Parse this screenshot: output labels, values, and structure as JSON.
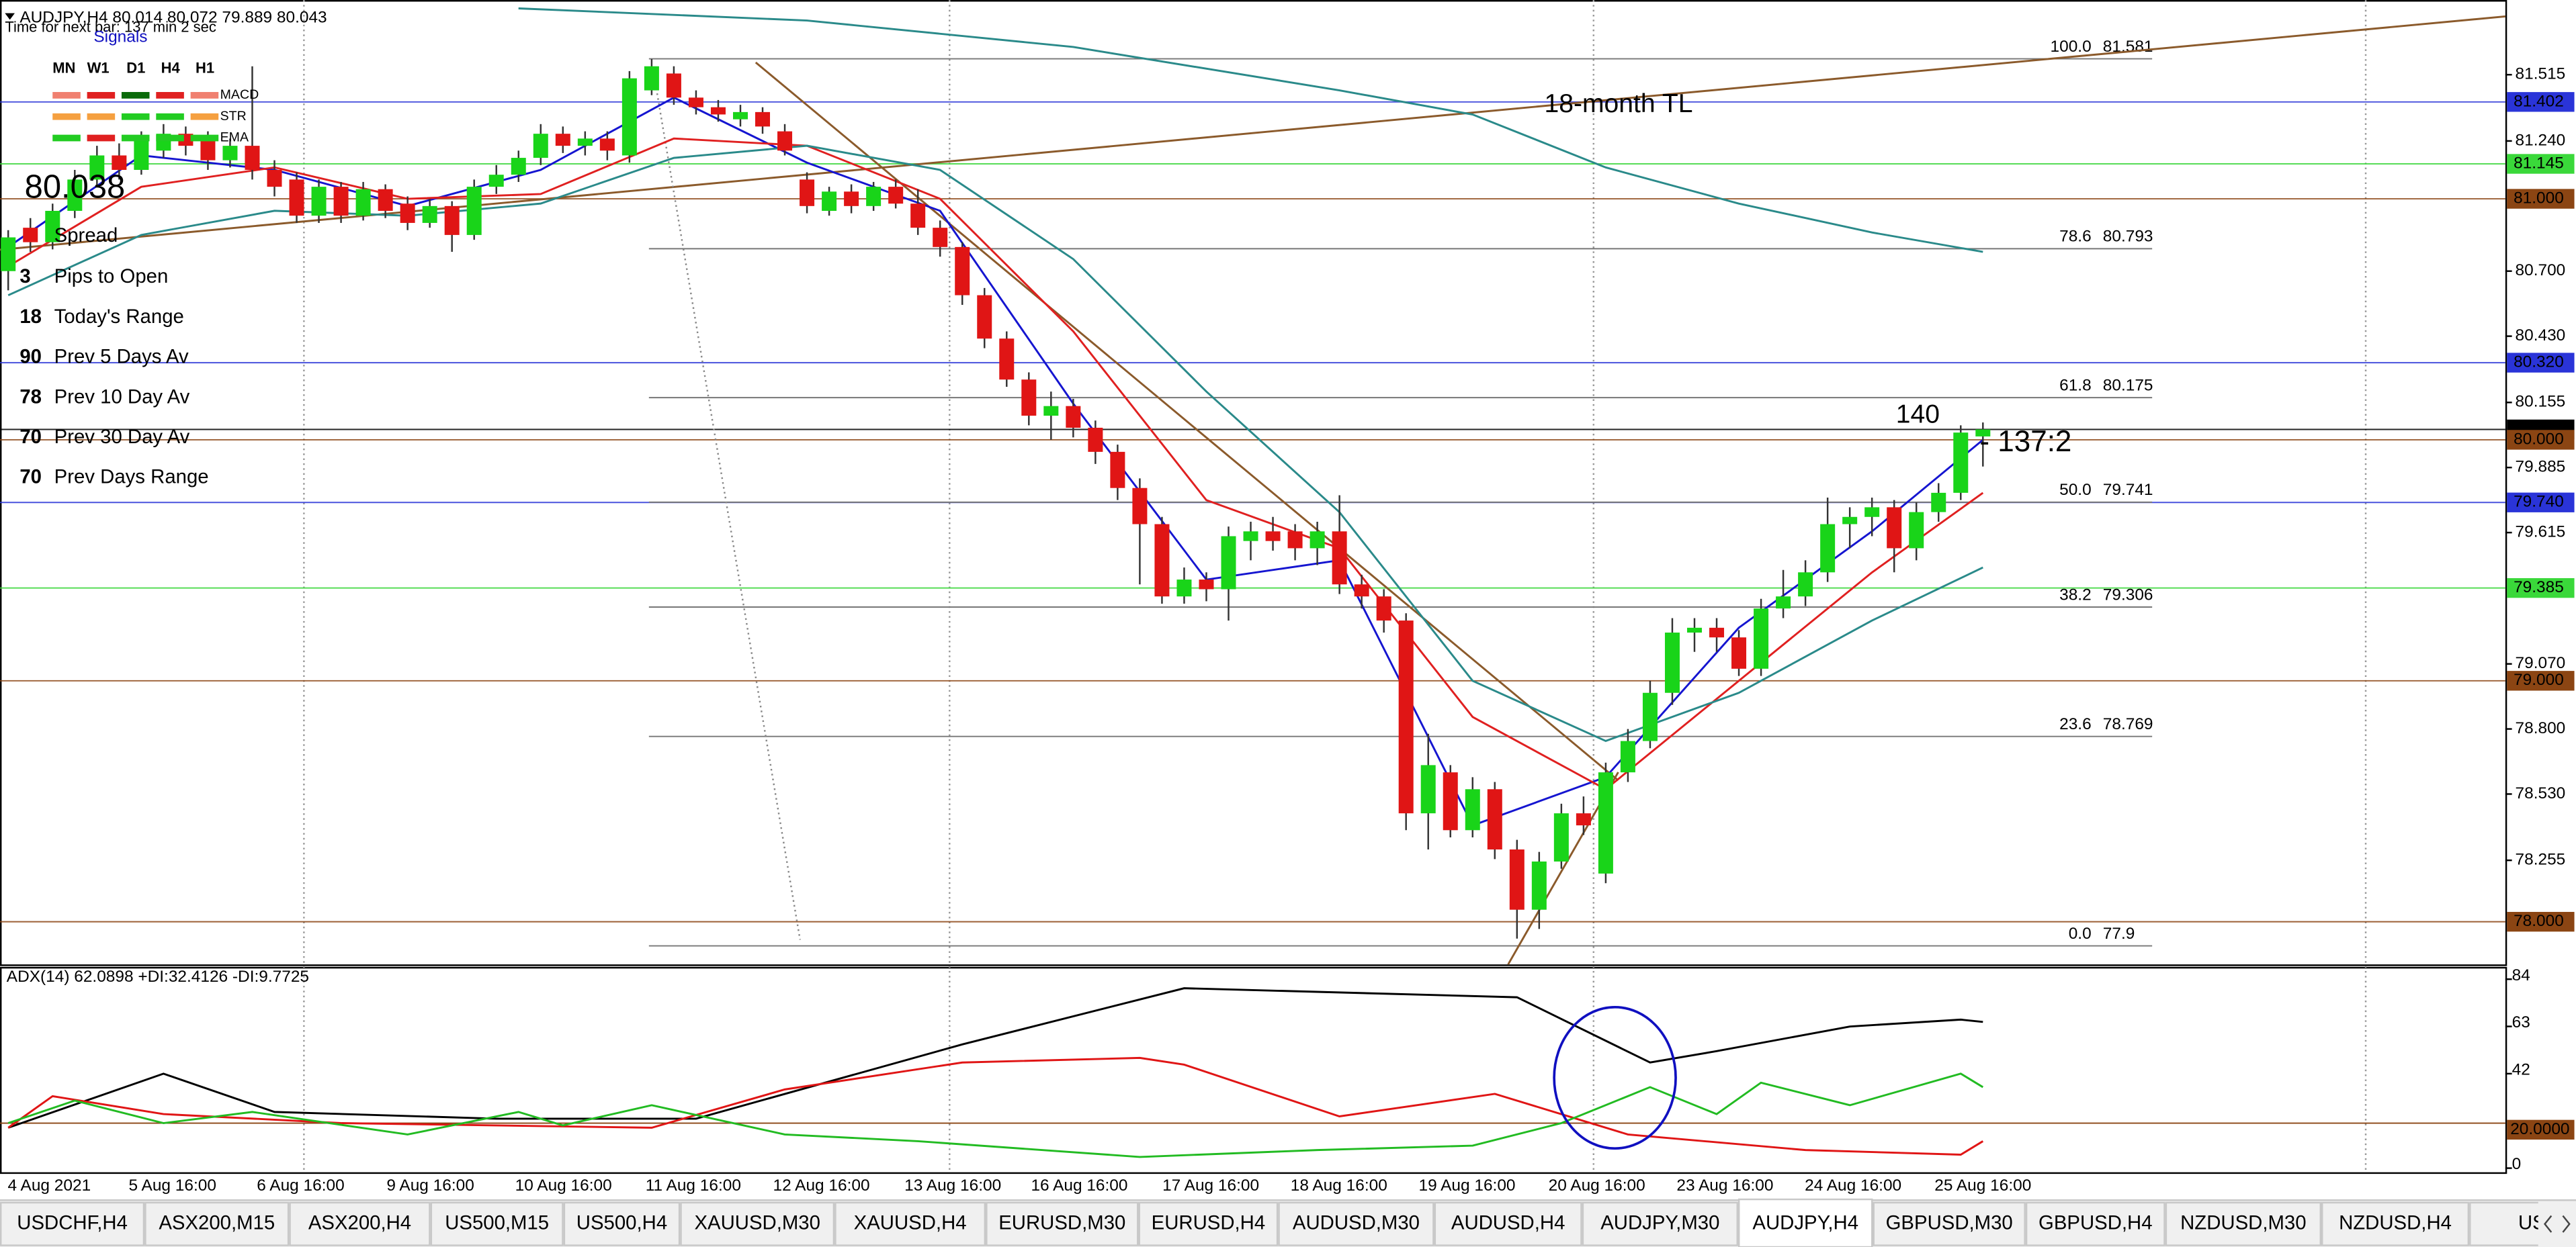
{
  "window": {
    "symbol_info": "AUDJPY,H4  80.014 80.072 79.889 80.043",
    "timer": "Time for next bar: 137 min 2 sec"
  },
  "signals": {
    "title": "Signals",
    "periods": [
      "MN",
      "W1",
      "D1",
      "H4",
      "H1"
    ],
    "indicators": [
      "MACD",
      "STR",
      "EMA"
    ]
  },
  "bid_price": 80.038,
  "info": {
    "spread": "Spread",
    "rows": [
      {
        "value": 3,
        "label": "Pips to Open"
      },
      {
        "value": 18,
        "label": "Today's Range"
      },
      {
        "value": 90,
        "label": "Prev 5 Days Av"
      },
      {
        "value": 78,
        "label": "Prev 10 Day Av"
      },
      {
        "value": 70,
        "label": "Prev 30 Day Av"
      },
      {
        "value": 70,
        "label": "Prev Days Range"
      }
    ]
  },
  "chart_data": [
    {
      "type": "candlestick",
      "up_color": "#19d419",
      "down_color": "#e01515",
      "ylim": [
        77.823,
        81.825
      ],
      "yticks": [
        81.515,
        {
          "value": 81.24,
          "label": "81.240"
        },
        {
          "value": 80.7,
          "label": "80.700"
        },
        {
          "value": 80.43,
          "label": "80.430"
        },
        80.155,
        79.885,
        79.615,
        {
          "value": 79.07,
          "label": "79.070"
        },
        {
          "value": 78.8,
          "label": "78.800"
        },
        {
          "value": 78.53,
          "label": "78.530"
        },
        78.255
      ],
      "levels": [
        {
          "value": 81.402,
          "label": "81.402",
          "color": "#2a34d8"
        },
        {
          "value": 81.145,
          "label": "81.145",
          "color": "#3ad83a"
        },
        {
          "value": 81,
          "label": "81.000",
          "color": "#8b4513"
        },
        {
          "value": 80.32,
          "label": "80.320",
          "color": "#2a34d8"
        },
        {
          "value": 80.043,
          "label": "80.043",
          "color": "#000000"
        },
        {
          "value": 80,
          "label": "80.000",
          "color": "#8b4513"
        },
        {
          "value": 79.74,
          "label": "79.740",
          "color": "#2a34d8"
        },
        {
          "value": 79.385,
          "label": "79.385",
          "color": "#3ad83a"
        },
        {
          "value": 79,
          "label": "79.000",
          "color": "#8b4513"
        },
        {
          "value": 78,
          "label": "78.000",
          "color": "#8b4513"
        }
      ],
      "fib_levels": [
        {
          "level": {
            "value": 100,
            "label": "100.0"
          },
          "price": 81.581
        },
        {
          "level": 78.6,
          "price": 80.793
        },
        {
          "level": 61.8,
          "price": 80.175
        },
        {
          "level": {
            "value": 50,
            "label": "50.0"
          },
          "price": 79.741
        },
        {
          "level": 38.2,
          "price": 79.306
        },
        {
          "level": 23.6,
          "price": 78.769
        },
        {
          "level": {
            "value": 0,
            "label": "0.0"
          },
          "price": 77.9
        }
      ],
      "annotations": [
        {
          "text": "18-month TL",
          "color": "#8b5a2b"
        },
        {
          "text": 140,
          "color": "#8b5a2b"
        },
        {
          "text": "- 137:2",
          "color": "#e02020"
        }
      ],
      "x_labels": [
        "4 Aug 2021",
        "5 Aug 16:00",
        "6 Aug 16:00",
        "9 Aug 16:00",
        "10 Aug 16:00",
        "11 Aug 16:00",
        "12 Aug 16:00",
        "13 Aug 16:00",
        "16 Aug 16:00",
        "17 Aug 16:00",
        "18 Aug 16:00",
        "19 Aug 16:00",
        "20 Aug 16:00",
        "23 Aug 16:00",
        "24 Aug 16:00",
        "25 Aug 16:00"
      ],
      "candles": [
        [
          80.7,
          80.87,
          80.62,
          80.84
        ],
        [
          80.88,
          80.92,
          80.78,
          80.82
        ],
        [
          80.82,
          80.98,
          80.79,
          80.95
        ],
        [
          80.95,
          81.12,
          80.92,
          81.08
        ],
        [
          81.08,
          81.22,
          81.05,
          81.18
        ],
        [
          81.18,
          81.23,
          81.08,
          81.12
        ],
        [
          81.12,
          81.28,
          81.1,
          81.24
        ],
        [
          81.2,
          81.31,
          81.17,
          81.27
        ],
        [
          81.27,
          81.3,
          81.18,
          81.22
        ],
        [
          81.25,
          81.28,
          81.12,
          81.16
        ],
        [
          81.16,
          81.25,
          81.13,
          81.22
        ],
        [
          81.22,
          81.55,
          81.08,
          81.12
        ],
        [
          81.12,
          81.16,
          81.01,
          81.05
        ],
        [
          81.08,
          81.11,
          80.9,
          80.93
        ],
        [
          80.93,
          81.08,
          80.9,
          81.05
        ],
        [
          81.05,
          81.07,
          80.9,
          80.93
        ],
        [
          80.93,
          81.07,
          80.91,
          81.04
        ],
        [
          81.04,
          81.06,
          80.92,
          80.95
        ],
        [
          80.98,
          81.01,
          80.87,
          80.9
        ],
        [
          80.9,
          81.0,
          80.88,
          80.97
        ],
        [
          80.97,
          80.99,
          80.78,
          80.85
        ],
        [
          80.85,
          81.08,
          80.83,
          81.05
        ],
        [
          81.05,
          81.14,
          81.02,
          81.1
        ],
        [
          81.1,
          81.2,
          81.07,
          81.17
        ],
        [
          81.17,
          81.31,
          81.14,
          81.27
        ],
        [
          81.27,
          81.3,
          81.19,
          81.22
        ],
        [
          81.22,
          81.28,
          81.18,
          81.25
        ],
        [
          81.25,
          81.28,
          81.16,
          81.2
        ],
        [
          81.18,
          81.53,
          81.15,
          81.5
        ],
        [
          81.45,
          81.58,
          81.43,
          81.55
        ],
        [
          81.52,
          81.55,
          81.39,
          81.42
        ],
        [
          81.42,
          81.45,
          81.35,
          81.38
        ],
        [
          81.38,
          81.41,
          81.32,
          81.35
        ],
        [
          81.33,
          81.39,
          81.3,
          81.36
        ],
        [
          81.36,
          81.38,
          81.27,
          81.3
        ],
        [
          81.28,
          81.31,
          81.18,
          81.2
        ],
        [
          81.08,
          81.11,
          80.94,
          80.97
        ],
        [
          80.95,
          81.05,
          80.93,
          81.03
        ],
        [
          81.03,
          81.06,
          80.94,
          80.97
        ],
        [
          80.97,
          81.07,
          80.95,
          81.05
        ],
        [
          81.05,
          81.08,
          80.96,
          80.98
        ],
        [
          80.98,
          81.04,
          80.85,
          80.88
        ],
        [
          80.88,
          80.91,
          80.76,
          80.8
        ],
        [
          80.8,
          80.82,
          80.56,
          80.6
        ],
        [
          80.6,
          80.63,
          80.38,
          80.42
        ],
        [
          80.42,
          80.45,
          80.22,
          80.25
        ],
        [
          80.25,
          80.28,
          80.06,
          80.1
        ],
        [
          80.1,
          80.2,
          80.0,
          80.14
        ],
        [
          80.14,
          80.17,
          80.01,
          80.05
        ],
        [
          80.05,
          80.08,
          79.9,
          79.95
        ],
        [
          79.95,
          79.98,
          79.75,
          79.8
        ],
        [
          79.8,
          79.84,
          79.4,
          79.65
        ],
        [
          79.65,
          79.68,
          79.32,
          79.35
        ],
        [
          79.35,
          79.47,
          79.32,
          79.42
        ],
        [
          79.42,
          79.45,
          79.33,
          79.38
        ],
        [
          79.38,
          79.64,
          79.25,
          79.6
        ],
        [
          79.58,
          79.66,
          79.5,
          79.62
        ],
        [
          79.62,
          79.68,
          79.54,
          79.58
        ],
        [
          79.62,
          79.65,
          79.5,
          79.55
        ],
        [
          79.55,
          79.66,
          79.48,
          79.62
        ],
        [
          79.62,
          79.77,
          79.36,
          79.4
        ],
        [
          79.4,
          79.44,
          79.3,
          79.35
        ],
        [
          79.35,
          79.38,
          79.2,
          79.25
        ],
        [
          79.25,
          79.28,
          78.38,
          78.45
        ],
        [
          78.45,
          78.78,
          78.3,
          78.65
        ],
        [
          78.62,
          78.65,
          78.35,
          78.38
        ],
        [
          78.38,
          78.6,
          78.35,
          78.55
        ],
        [
          78.55,
          78.58,
          78.26,
          78.3
        ],
        [
          78.3,
          78.34,
          77.93,
          78.05
        ],
        [
          78.05,
          78.29,
          77.97,
          78.25
        ],
        [
          78.25,
          78.49,
          78.22,
          78.45
        ],
        [
          78.45,
          78.52,
          78.36,
          78.4
        ],
        [
          78.2,
          78.66,
          78.16,
          78.62
        ],
        [
          78.62,
          78.8,
          78.58,
          78.75
        ],
        [
          78.75,
          79.0,
          78.72,
          78.95
        ],
        [
          78.95,
          79.26,
          78.9,
          79.2
        ],
        [
          79.2,
          79.26,
          79.12,
          79.22
        ],
        [
          79.22,
          79.26,
          79.12,
          79.18
        ],
        [
          79.18,
          79.21,
          79.02,
          79.05
        ],
        [
          79.05,
          79.34,
          79.02,
          79.3
        ],
        [
          79.3,
          79.46,
          79.26,
          79.35
        ],
        [
          79.35,
          79.5,
          79.31,
          79.45
        ],
        [
          79.45,
          79.76,
          79.41,
          79.65
        ],
        [
          79.65,
          79.72,
          79.55,
          79.68
        ],
        [
          79.68,
          79.76,
          79.6,
          79.72
        ],
        [
          79.72,
          79.75,
          79.45,
          79.55
        ],
        [
          79.55,
          79.74,
          79.5,
          79.7
        ],
        [
          79.7,
          79.82,
          79.66,
          79.78
        ],
        [
          79.78,
          80.06,
          79.75,
          80.03
        ],
        [
          80.014,
          80.072,
          79.889,
          80.043
        ]
      ],
      "series": [
        {
          "color": "#1515d0",
          "x": [
            0,
            6,
            12,
            18,
            24,
            30,
            36,
            42,
            48,
            54,
            60,
            66,
            72,
            78,
            84,
            89
          ],
          "values": [
            80.8,
            81.18,
            81.12,
            80.97,
            81.12,
            81.42,
            81.15,
            80.95,
            80.15,
            79.42,
            79.5,
            78.4,
            78.6,
            79.22,
            79.62,
            80.0
          ]
        },
        {
          "color": "#e02020",
          "x": [
            0,
            6,
            12,
            18,
            24,
            30,
            36,
            42,
            48,
            54,
            60,
            66,
            72,
            78,
            84,
            89
          ],
          "values": [
            80.72,
            81.05,
            81.13,
            81.0,
            81.02,
            81.25,
            81.22,
            81.0,
            80.45,
            79.75,
            79.55,
            78.85,
            78.55,
            79.0,
            79.45,
            79.78
          ]
        },
        {
          "color": "#2a8a8a",
          "x": [
            0,
            6,
            12,
            18,
            24,
            30,
            36,
            42,
            48,
            54,
            60,
            66,
            72,
            78,
            84,
            89
          ],
          "values": [
            80.6,
            80.85,
            80.95,
            80.93,
            80.98,
            81.17,
            81.22,
            81.12,
            80.75,
            80.2,
            79.7,
            79.0,
            78.75,
            78.95,
            79.25,
            79.47
          ]
        },
        {
          "color": "#2a8a8a",
          "x": [
            23,
            36,
            48,
            60,
            66,
            72,
            78,
            84,
            89
          ],
          "values": [
            81.79,
            81.74,
            81.63,
            81.45,
            81.35,
            81.13,
            80.98,
            80.86,
            80.78
          ]
        }
      ]
    },
    {
      "type": "line",
      "title": "ADX(14) 62.0898 +DI:32.4126 -DI:9.7725",
      "ylim": [
        0,
        84
      ],
      "yticks": [
        84,
        63,
        42,
        0
      ],
      "level": {
        "value": 20,
        "label": "20.0000",
        "color": "#8b4513"
      },
      "series": [
        {
          "color": "#000000",
          "x": [
            0,
            7,
            12,
            22,
            31,
            43,
            53,
            68,
            74,
            77,
            83,
            88,
            89
          ],
          "values": [
            18,
            42,
            25,
            22,
            22,
            55,
            80,
            76,
            47,
            52,
            63,
            66,
            65
          ]
        },
        {
          "color": "#e01515",
          "x": [
            0,
            2,
            7,
            15,
            29,
            35,
            43,
            51,
            53,
            60,
            67,
            73,
            81,
            88,
            89
          ],
          "values": [
            18,
            32,
            24,
            20,
            18,
            35,
            47,
            49,
            46,
            23,
            33,
            15,
            8,
            6,
            12
          ]
        },
        {
          "color": "#22bb22",
          "x": [
            0,
            3,
            7,
            11,
            18,
            23,
            25,
            29,
            35,
            41,
            51,
            59,
            66,
            70,
            74,
            77,
            79,
            83,
            88,
            89
          ],
          "values": [
            20,
            30,
            20,
            25,
            15,
            25,
            19,
            28,
            15,
            12,
            5,
            8,
            10,
            20,
            36,
            24,
            38,
            28,
            42,
            36
          ]
        }
      ]
    }
  ],
  "tabs": [
    "USDCHF,H4",
    "ASX200,M15",
    "ASX200,H4",
    "US500,M15",
    "US500,H4",
    "XAUUSD,M30",
    "XAUUSD,H4",
    "EURUSD,M30",
    "EURUSD,H4",
    "AUDUSD,M30",
    "AUDUSD,H4",
    "AUDJPY,M30",
    "AUDJPY,H4",
    "GBPUSD,M30",
    "GBPUSD,H4",
    "NZDUSD,M30",
    "NZDUSD,H4",
    "USD"
  ],
  "active_tab": 12
}
